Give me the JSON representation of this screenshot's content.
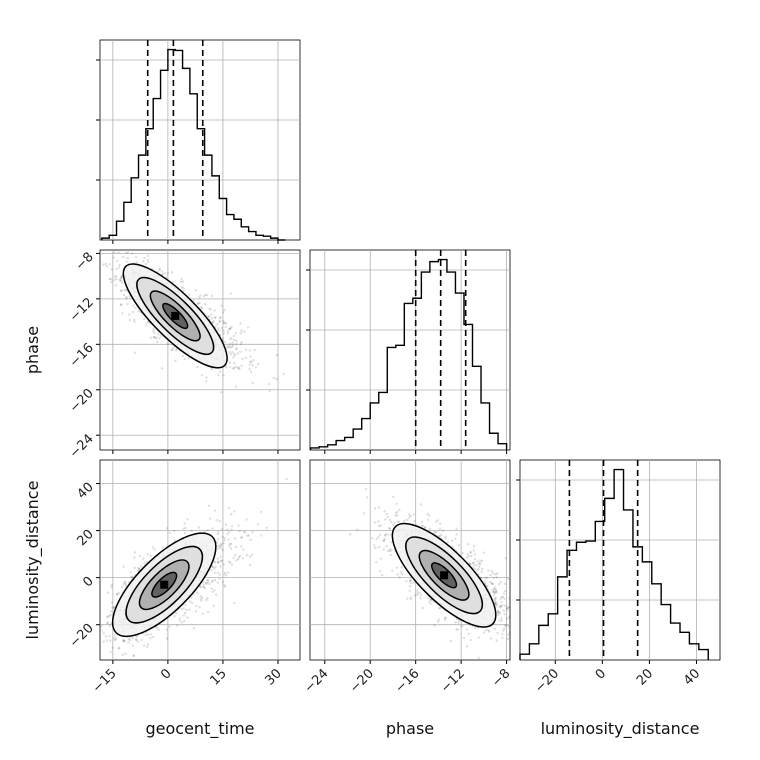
{
  "chart_data": {
    "type": "corner",
    "parameters": [
      "geocent_time",
      "phase",
      "luminosity_distance"
    ],
    "axis_labels": {
      "x": [
        "geocent_time",
        "phase",
        "luminosity_distance"
      ],
      "y": [
        "phase",
        "luminosity_distance"
      ]
    },
    "ranges": {
      "geocent_time": [
        -18.5,
        36
      ],
      "phase": [
        -25.3,
        -7.7
      ],
      "luminosity_distance": [
        -35,
        50
      ]
    },
    "ticks": {
      "geocent_time": [
        -15,
        0,
        15,
        30
      ],
      "phase": [
        -24,
        -20,
        -16,
        -12,
        -8
      ],
      "luminosity_distance": [
        -20,
        0,
        20,
        40
      ]
    },
    "tick_labels": {
      "geocent_time": [
        "−15",
        "0",
        "15",
        "30"
      ],
      "phase": [
        "−24",
        "−20",
        "−16",
        "−12",
        "−8"
      ],
      "luminosity_distance": [
        "−20",
        "0",
        "20",
        "40"
      ],
      "luminosity_distance_y": [
        "−20",
        "0",
        "20",
        "40"
      ]
    },
    "quantiles": {
      "geocent_time": [
        -5.5,
        1.5,
        9.5
      ],
      "phase": [
        -16.0,
        -13.8,
        -11.6
      ],
      "luminosity_distance": [
        -14.0,
        0.5,
        15.0
      ]
    },
    "histograms": {
      "geocent_time": {
        "edges": [
          -18,
          -16,
          -14,
          -12,
          -10,
          -8,
          -6,
          -4,
          -2,
          0,
          2,
          4,
          6,
          8,
          10,
          12,
          14,
          16,
          18,
          20,
          22,
          24,
          26,
          28,
          30,
          32
        ],
        "counts": [
          2,
          5,
          20,
          40,
          66,
          90,
          118,
          150,
          180,
          202,
          201,
          182,
          155,
          118,
          90,
          68,
          44,
          27,
          22,
          14,
          9,
          5,
          4,
          2,
          0
        ]
      },
      "phase": {
        "edges": [
          -25.25,
          -24.5,
          -23.75,
          -23,
          -22.25,
          -21.5,
          -20.75,
          -20,
          -19.25,
          -18.5,
          -17.75,
          -17,
          -16.25,
          -15.5,
          -14.75,
          -14,
          -13.25,
          -12.5,
          -11.75,
          -11,
          -10.25,
          -9.5,
          -8.75,
          -8
        ],
        "counts": [
          2,
          3,
          5,
          9,
          12,
          20,
          30,
          45,
          55,
          98,
          100,
          140,
          145,
          170,
          180,
          182,
          170,
          150,
          120,
          80,
          45,
          16,
          6
        ]
      },
      "luminosity_distance": {
        "edges": [
          -35,
          -31,
          -27,
          -23,
          -19,
          -15,
          -11,
          -7,
          -3,
          1,
          5,
          9,
          13,
          17,
          21,
          25,
          29,
          33,
          37,
          41,
          45
        ],
        "counts": [
          5,
          14,
          30,
          40,
          72,
          95,
          102,
          103,
          120,
          140,
          165,
          130,
          98,
          85,
          66,
          48,
          32,
          24,
          14,
          9
        ]
      }
    },
    "correlations": {
      "phase_vs_geocent_time": -0.78,
      "luminosity_distance_vs_geocent_time": 0.68,
      "luminosity_distance_vs_phase": -0.72
    },
    "density_peaks": {
      "phase_vs_geocent_time": [
        2,
        -13.5
      ],
      "luminosity_distance_vs_geocent_time": [
        -1,
        -3
      ],
      "luminosity_distance_vs_phase": [
        -13.5,
        1
      ]
    },
    "grid": true,
    "legend": "none"
  }
}
